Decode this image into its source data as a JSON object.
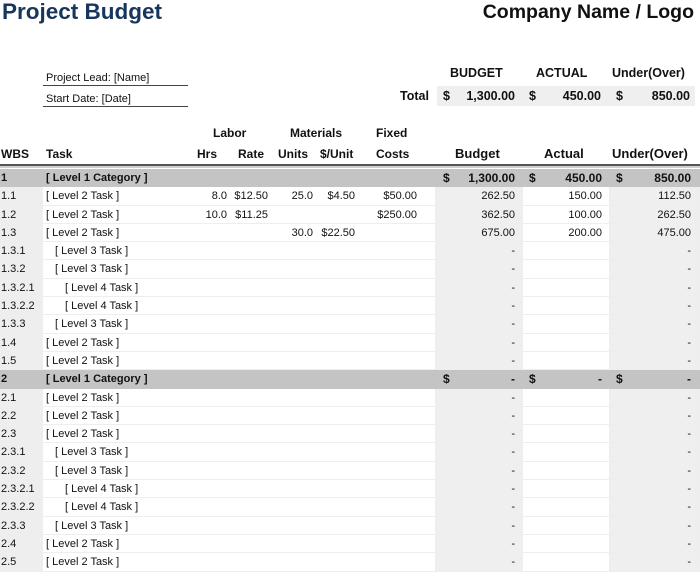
{
  "header": {
    "title": "Project Budget",
    "company": "Company Name / Logo",
    "project_lead": "Project Lead: [Name]",
    "start_date": "Start Date: [Date]"
  },
  "totals": {
    "labels": {
      "budget": "BUDGET",
      "actual": "ACTUAL",
      "under_over": "Under(Over)",
      "total": "Total"
    },
    "currency": "$",
    "budget": "1,300.00",
    "actual": "450.00",
    "under_over": "850.00"
  },
  "columns": {
    "group_labor": "Labor",
    "group_materials": "Materials",
    "group_fixed": "Fixed",
    "wbs": "WBS",
    "task": "Task",
    "hrs": "Hrs",
    "rate": "Rate",
    "units": "Units",
    "per_unit": "$/Unit",
    "costs": "Costs",
    "budget": "Budget",
    "actual": "Actual",
    "under_over": "Under(Over)"
  },
  "rows": [
    {
      "level": 1,
      "wbs": "1",
      "task": "[ Level 1 Category ]",
      "hrs": "",
      "rate": "",
      "units": "",
      "per_unit": "",
      "fixed": "",
      "cur": "$",
      "budget": "1,300.00",
      "actual": "450.00",
      "under_over": "850.00"
    },
    {
      "level": 2,
      "wbs": "1.1",
      "task": "[ Level 2 Task ]",
      "hrs": "8.0",
      "rate": "$12.50",
      "units": "25.0",
      "per_unit": "$4.50",
      "fixed": "$50.00",
      "budget": "262.50",
      "actual": "150.00",
      "under_over": "112.50"
    },
    {
      "level": 2,
      "wbs": "1.2",
      "task": "[ Level 2 Task ]",
      "hrs": "10.0",
      "rate": "$11.25",
      "units": "",
      "per_unit": "",
      "fixed": "$250.00",
      "budget": "362.50",
      "actual": "100.00",
      "under_over": "262.50"
    },
    {
      "level": 2,
      "wbs": "1.3",
      "task": "[ Level 2 Task ]",
      "hrs": "",
      "rate": "",
      "units": "30.0",
      "per_unit": "$22.50",
      "fixed": "",
      "budget": "675.00",
      "actual": "200.00",
      "under_over": "475.00"
    },
    {
      "level": 3,
      "wbs": "1.3.1",
      "task": "[ Level 3 Task ]",
      "budget": "-",
      "actual": "",
      "under_over": "-"
    },
    {
      "level": 3,
      "wbs": "1.3.2",
      "task": "[ Level 3 Task ]",
      "budget": "-",
      "actual": "",
      "under_over": "-"
    },
    {
      "level": 4,
      "wbs": "1.3.2.1",
      "task": "[ Level 4 Task ]",
      "budget": "-",
      "actual": "",
      "under_over": "-"
    },
    {
      "level": 4,
      "wbs": "1.3.2.2",
      "task": "[ Level 4 Task ]",
      "budget": "-",
      "actual": "",
      "under_over": "-"
    },
    {
      "level": 3,
      "wbs": "1.3.3",
      "task": "[ Level 3 Task ]",
      "budget": "-",
      "actual": "",
      "under_over": "-"
    },
    {
      "level": 2,
      "wbs": "1.4",
      "task": "[ Level 2 Task ]",
      "budget": "-",
      "actual": "",
      "under_over": "-"
    },
    {
      "level": 2,
      "wbs": "1.5",
      "task": "[ Level 2 Task ]",
      "budget": "-",
      "actual": "",
      "under_over": "-"
    },
    {
      "level": 1,
      "wbs": "2",
      "task": "[ Level 1 Category ]",
      "cur": "$",
      "budget": "-",
      "actual": "-",
      "under_over": "-"
    },
    {
      "level": 2,
      "wbs": "2.1",
      "task": "[ Level 2 Task ]",
      "budget": "-",
      "actual": "",
      "under_over": "-"
    },
    {
      "level": 2,
      "wbs": "2.2",
      "task": "[ Level 2 Task ]",
      "budget": "-",
      "actual": "",
      "under_over": "-"
    },
    {
      "level": 2,
      "wbs": "2.3",
      "task": "[ Level 2 Task ]",
      "budget": "-",
      "actual": "",
      "under_over": "-"
    },
    {
      "level": 3,
      "wbs": "2.3.1",
      "task": "[ Level 3 Task ]",
      "budget": "-",
      "actual": "",
      "under_over": "-"
    },
    {
      "level": 3,
      "wbs": "2.3.2",
      "task": "[ Level 3 Task ]",
      "budget": "-",
      "actual": "",
      "under_over": "-"
    },
    {
      "level": 4,
      "wbs": "2.3.2.1",
      "task": "[ Level 4 Task ]",
      "budget": "-",
      "actual": "",
      "under_over": "-"
    },
    {
      "level": 4,
      "wbs": "2.3.2.2",
      "task": "[ Level 4 Task ]",
      "budget": "-",
      "actual": "",
      "under_over": "-"
    },
    {
      "level": 3,
      "wbs": "2.3.3",
      "task": "[ Level 3 Task ]",
      "budget": "-",
      "actual": "",
      "under_over": "-"
    },
    {
      "level": 2,
      "wbs": "2.4",
      "task": "[ Level 2 Task ]",
      "budget": "-",
      "actual": "",
      "under_over": "-"
    },
    {
      "level": 2,
      "wbs": "2.5",
      "task": "[ Level 2 Task ]",
      "budget": "-",
      "actual": "",
      "under_over": "-"
    }
  ],
  "colors": {
    "title": "#17365d",
    "category_row": "#c4c4c4",
    "shaded_column": "#efefef"
  }
}
